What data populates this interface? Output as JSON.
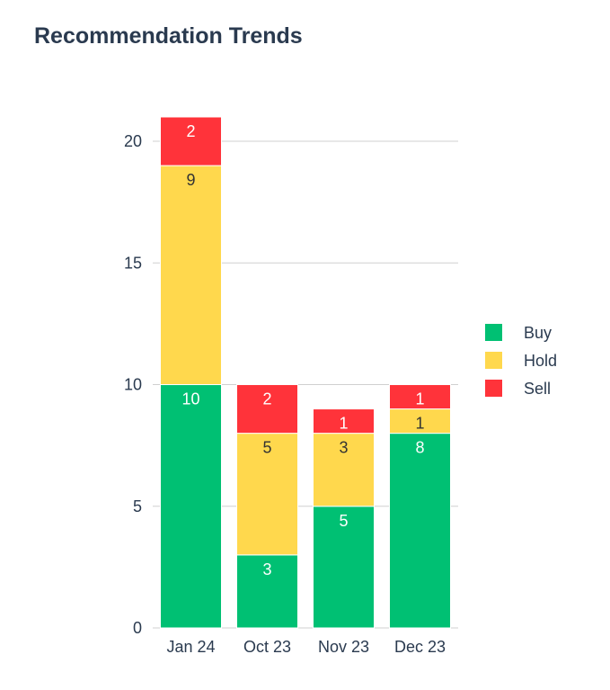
{
  "header": {
    "title": "Recommendation Trends"
  },
  "chart_data": {
    "type": "bar",
    "stacked": true,
    "title": "Recommendation Trends",
    "xlabel": "",
    "ylabel": "",
    "categories": [
      "Jan 24",
      "Oct 23",
      "Nov 23",
      "Dec 23"
    ],
    "series": [
      {
        "name": "Buy",
        "values": [
          10,
          3,
          5,
          8
        ],
        "color": "#00c073",
        "label_color": "#ffffff"
      },
      {
        "name": "Hold",
        "values": [
          9,
          5,
          3,
          1
        ],
        "color": "#ffd84d",
        "label_color": "#333333"
      },
      {
        "name": "Sell",
        "values": [
          2,
          2,
          1,
          1
        ],
        "color": "#ff333a",
        "label_color": "#ffffff"
      }
    ],
    "ylim": [
      0,
      21
    ],
    "yticks": [
      0,
      5,
      10,
      15,
      20
    ],
    "grid": true,
    "legend_position": "right"
  }
}
